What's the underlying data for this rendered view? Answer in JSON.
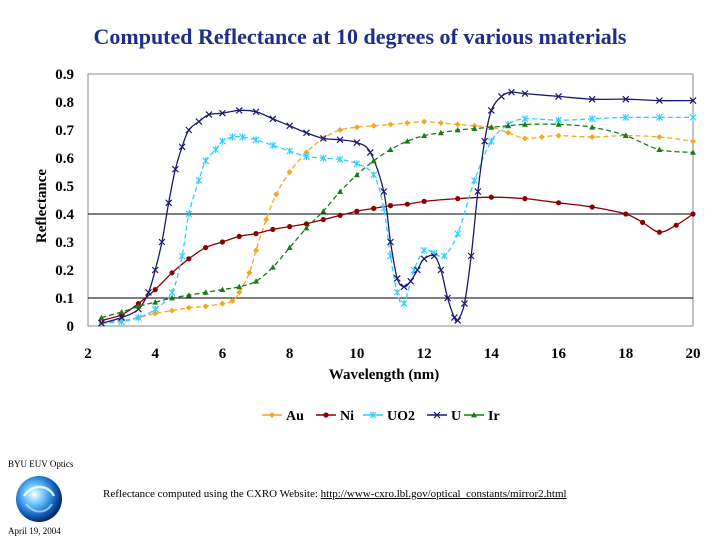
{
  "slide": {
    "footer_org": "BYU EUV Optics",
    "footer_date": "April 19, 2004",
    "credit_text": "Reflectance computed using the CXRO Website: ",
    "credit_link": "http://www-cxro.lbl.gov/optical_constants/mirror2.html"
  },
  "chart_data": {
    "type": "line",
    "title": "Computed Reflectance at 10 degrees of various materials",
    "xlabel": "Wavelength (nm)",
    "ylabel": "Reflectance",
    "xlim": [
      2,
      20
    ],
    "ylim": [
      0,
      0.9
    ],
    "xticks": [
      2,
      4,
      6,
      8,
      10,
      12,
      14,
      16,
      18,
      20
    ],
    "yticks": [
      0,
      0.1,
      0.2,
      0.3,
      0.4,
      0.5,
      0.6,
      0.7,
      0.8,
      0.9
    ],
    "ytick_labels": [
      "0",
      "0.1",
      "0.2",
      "0.3",
      "0.4",
      "0.5",
      "0.6",
      "0.7",
      "0.8",
      "0.9"
    ],
    "gridlines_y": [
      0.1,
      0.4
    ],
    "legend_position": "bottom",
    "series": [
      {
        "name": "Au",
        "color": "#f5a623",
        "marker": "diamond",
        "x": [
          2.4,
          3.0,
          3.5,
          4.0,
          4.5,
          5.0,
          5.5,
          6.0,
          6.3,
          6.5,
          6.8,
          7.0,
          7.3,
          7.6,
          8.0,
          8.5,
          9.0,
          9.5,
          10.0,
          10.5,
          11.0,
          11.5,
          12.0,
          12.5,
          13.0,
          13.5,
          14.0,
          14.5,
          15.0,
          15.5,
          16.0,
          17.0,
          18.0,
          19.0,
          20.0
        ],
        "y": [
          0.01,
          0.02,
          0.03,
          0.045,
          0.055,
          0.065,
          0.07,
          0.08,
          0.09,
          0.12,
          0.19,
          0.27,
          0.38,
          0.47,
          0.55,
          0.62,
          0.67,
          0.7,
          0.71,
          0.715,
          0.72,
          0.725,
          0.73,
          0.725,
          0.72,
          0.715,
          0.71,
          0.69,
          0.67,
          0.675,
          0.68,
          0.675,
          0.68,
          0.675,
          0.66
        ]
      },
      {
        "name": "Ni",
        "color": "#8b0000",
        "marker": "circle",
        "x": [
          2.4,
          3.0,
          3.5,
          4.0,
          4.5,
          5.0,
          5.5,
          6.0,
          6.5,
          7.0,
          7.5,
          8.0,
          8.5,
          9.0,
          9.5,
          10.0,
          10.5,
          11.0,
          11.5,
          12.0,
          13.0,
          14.0,
          15.0,
          16.0,
          17.0,
          18.0,
          18.5,
          19.0,
          19.5,
          20.0
        ],
        "y": [
          0.02,
          0.04,
          0.08,
          0.13,
          0.19,
          0.24,
          0.28,
          0.3,
          0.32,
          0.33,
          0.345,
          0.355,
          0.365,
          0.38,
          0.395,
          0.41,
          0.42,
          0.43,
          0.435,
          0.445,
          0.455,
          0.46,
          0.455,
          0.44,
          0.425,
          0.4,
          0.37,
          0.335,
          0.36,
          0.4
        ]
      },
      {
        "name": "UO2",
        "color": "#33ccff",
        "marker": "star",
        "x": [
          2.4,
          3.0,
          3.5,
          4.0,
          4.5,
          4.8,
          5.0,
          5.3,
          5.5,
          5.8,
          6.0,
          6.3,
          6.6,
          7.0,
          7.5,
          8.0,
          8.5,
          9.0,
          9.5,
          10.0,
          10.5,
          10.8,
          11.0,
          11.2,
          11.4,
          11.7,
          12.0,
          12.3,
          12.6,
          13.0,
          13.5,
          14.0,
          14.5,
          15.0,
          16.0,
          17.0,
          18.0,
          19.0,
          20.0
        ],
        "y": [
          0.01,
          0.015,
          0.03,
          0.06,
          0.12,
          0.25,
          0.4,
          0.52,
          0.59,
          0.63,
          0.66,
          0.675,
          0.675,
          0.665,
          0.645,
          0.625,
          0.605,
          0.6,
          0.595,
          0.58,
          0.54,
          0.42,
          0.25,
          0.12,
          0.08,
          0.2,
          0.27,
          0.26,
          0.25,
          0.33,
          0.52,
          0.66,
          0.72,
          0.74,
          0.735,
          0.74,
          0.745,
          0.745,
          0.745
        ]
      },
      {
        "name": "U",
        "color": "#1a1a6e",
        "marker": "x",
        "x": [
          2.4,
          3.0,
          3.5,
          3.8,
          4.0,
          4.2,
          4.4,
          4.6,
          4.8,
          5.0,
          5.3,
          5.6,
          6.0,
          6.5,
          7.0,
          7.5,
          8.0,
          8.5,
          9.0,
          9.5,
          10.0,
          10.4,
          10.8,
          11.0,
          11.2,
          11.4,
          11.6,
          11.8,
          12.0,
          12.3,
          12.5,
          12.7,
          12.9,
          13.0,
          13.2,
          13.4,
          13.6,
          13.8,
          14.0,
          14.3,
          14.6,
          15.0,
          16.0,
          17.0,
          18.0,
          19.0,
          20.0
        ],
        "y": [
          0.01,
          0.03,
          0.06,
          0.12,
          0.2,
          0.3,
          0.44,
          0.56,
          0.64,
          0.7,
          0.73,
          0.755,
          0.76,
          0.77,
          0.765,
          0.74,
          0.715,
          0.69,
          0.67,
          0.665,
          0.655,
          0.62,
          0.48,
          0.3,
          0.17,
          0.14,
          0.16,
          0.2,
          0.24,
          0.25,
          0.2,
          0.1,
          0.03,
          0.02,
          0.08,
          0.25,
          0.48,
          0.66,
          0.77,
          0.82,
          0.835,
          0.83,
          0.82,
          0.81,
          0.81,
          0.805,
          0.805
        ]
      },
      {
        "name": "Ir",
        "color": "#1a7a1a",
        "marker": "triangle",
        "x": [
          2.4,
          3.0,
          3.5,
          4.0,
          4.5,
          5.0,
          5.5,
          6.0,
          6.5,
          7.0,
          7.5,
          8.0,
          8.5,
          9.0,
          9.5,
          10.0,
          10.5,
          11.0,
          11.5,
          12.0,
          12.5,
          13.0,
          13.5,
          14.0,
          14.5,
          15.0,
          16.0,
          17.0,
          18.0,
          19.0,
          20.0
        ],
        "y": [
          0.03,
          0.05,
          0.07,
          0.085,
          0.1,
          0.11,
          0.12,
          0.13,
          0.14,
          0.16,
          0.21,
          0.28,
          0.35,
          0.41,
          0.48,
          0.54,
          0.59,
          0.63,
          0.66,
          0.68,
          0.69,
          0.7,
          0.705,
          0.71,
          0.715,
          0.72,
          0.72,
          0.71,
          0.68,
          0.63,
          0.62
        ]
      }
    ]
  }
}
